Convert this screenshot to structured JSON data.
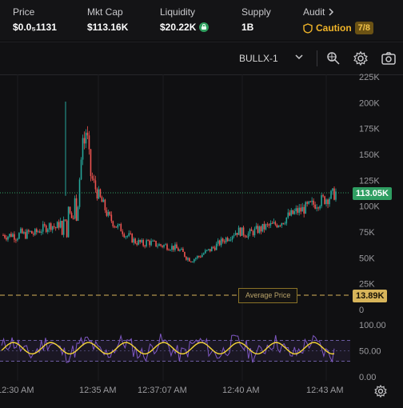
{
  "stats": {
    "price": {
      "label": "Price",
      "value": "$0.0₅1131"
    },
    "mkt_cap": {
      "label": "Mkt Cap",
      "value": "$113.16K"
    },
    "liquidity": {
      "label": "Liquidity",
      "value": "$20.22K"
    },
    "supply": {
      "label": "Supply",
      "value": "1B"
    },
    "audit": {
      "label": "Audit",
      "status": "Caution",
      "score": "7/8"
    }
  },
  "toolbar": {
    "source": "BULLX-1",
    "icons": [
      "chevron-down-icon",
      "drawing-tool-icon",
      "gear-icon",
      "camera-icon"
    ]
  },
  "price_axis": {
    "ticks": [
      "225K",
      "200K",
      "175K",
      "150K",
      "125K",
      "100K",
      "75K",
      "50K",
      "25K",
      "0"
    ],
    "current_tag": "113.05K",
    "average_tag": "13.89K",
    "average_label": "Average Price"
  },
  "rsi_axis": {
    "ticks": [
      "100.00",
      "50.00",
      "0.00"
    ]
  },
  "time_axis": {
    "ticks": [
      "12:30 AM",
      "12:35 AM",
      "12:37:07 AM",
      "12:40 AM",
      "12:43 AM"
    ]
  },
  "colors": {
    "up": "#26a69a",
    "down": "#ef5350",
    "rsi": "#7e57c2",
    "rsi_ma": "#f5d634",
    "current_line": "#2f9e62",
    "average_line": "#d7b45a"
  },
  "chart_data": {
    "type": "candlestick",
    "x_ticks": [
      "12:30 AM",
      "12:35 AM",
      "12:37:07 AM",
      "12:40 AM",
      "12:43 AM"
    ],
    "ylim": [
      0,
      225000
    ],
    "current_price": 113050,
    "average_price": 13890,
    "close_series": [
      72000,
      71000,
      73000,
      70000,
      74000,
      72000,
      75000,
      73000,
      76000,
      78000,
      80000,
      82000,
      79000,
      84000,
      86000,
      88000,
      90000,
      112000,
      150000,
      175000,
      130000,
      118000,
      108000,
      100000,
      90000,
      85000,
      80000,
      78000,
      72000,
      70000,
      66000,
      65000,
      63000,
      66000,
      64000,
      63000,
      62000,
      62000,
      61000,
      60000,
      58000,
      55000,
      50000,
      48000,
      50000,
      52000,
      55000,
      57000,
      60000,
      63000,
      66000,
      69000,
      72000,
      75000,
      76000,
      74000,
      73000,
      75000,
      77000,
      78000,
      80000,
      81000,
      82000,
      84000,
      86000,
      90000,
      92000,
      95000,
      96000,
      98000,
      100000,
      102000,
      104000,
      106000,
      108000,
      110000,
      113050
    ],
    "rsi": {
      "ylim": [
        0,
        100
      ],
      "upper_band": 70,
      "lower_band": 30
    }
  }
}
